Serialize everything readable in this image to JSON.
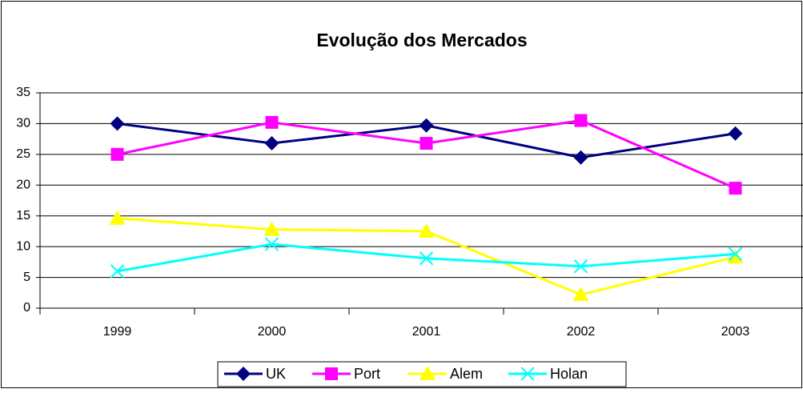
{
  "chart_data": {
    "type": "line",
    "title": "Evolução dos Mercados",
    "categories": [
      "1999",
      "2000",
      "2001",
      "2002",
      "2003"
    ],
    "series": [
      {
        "name": "UK",
        "color": "#000080",
        "marker": "diamond",
        "values": [
          30,
          26.8,
          29.7,
          24.5,
          28.4
        ]
      },
      {
        "name": "Port",
        "color": "#ff00ff",
        "marker": "square",
        "values": [
          25,
          30.2,
          26.8,
          30.5,
          19.5
        ]
      },
      {
        "name": "Alem",
        "color": "#ffff00",
        "marker": "triangle",
        "values": [
          14.6,
          12.8,
          12.5,
          2.2,
          8.3
        ]
      },
      {
        "name": "Holan",
        "color": "#00ffff",
        "marker": "x",
        "values": [
          6,
          10.4,
          8.1,
          6.8,
          8.8
        ]
      }
    ],
    "ylim": [
      0,
      35
    ],
    "yticks": [
      0,
      5,
      10,
      15,
      20,
      25,
      30,
      35
    ],
    "grid": true,
    "legend": "bottom"
  }
}
